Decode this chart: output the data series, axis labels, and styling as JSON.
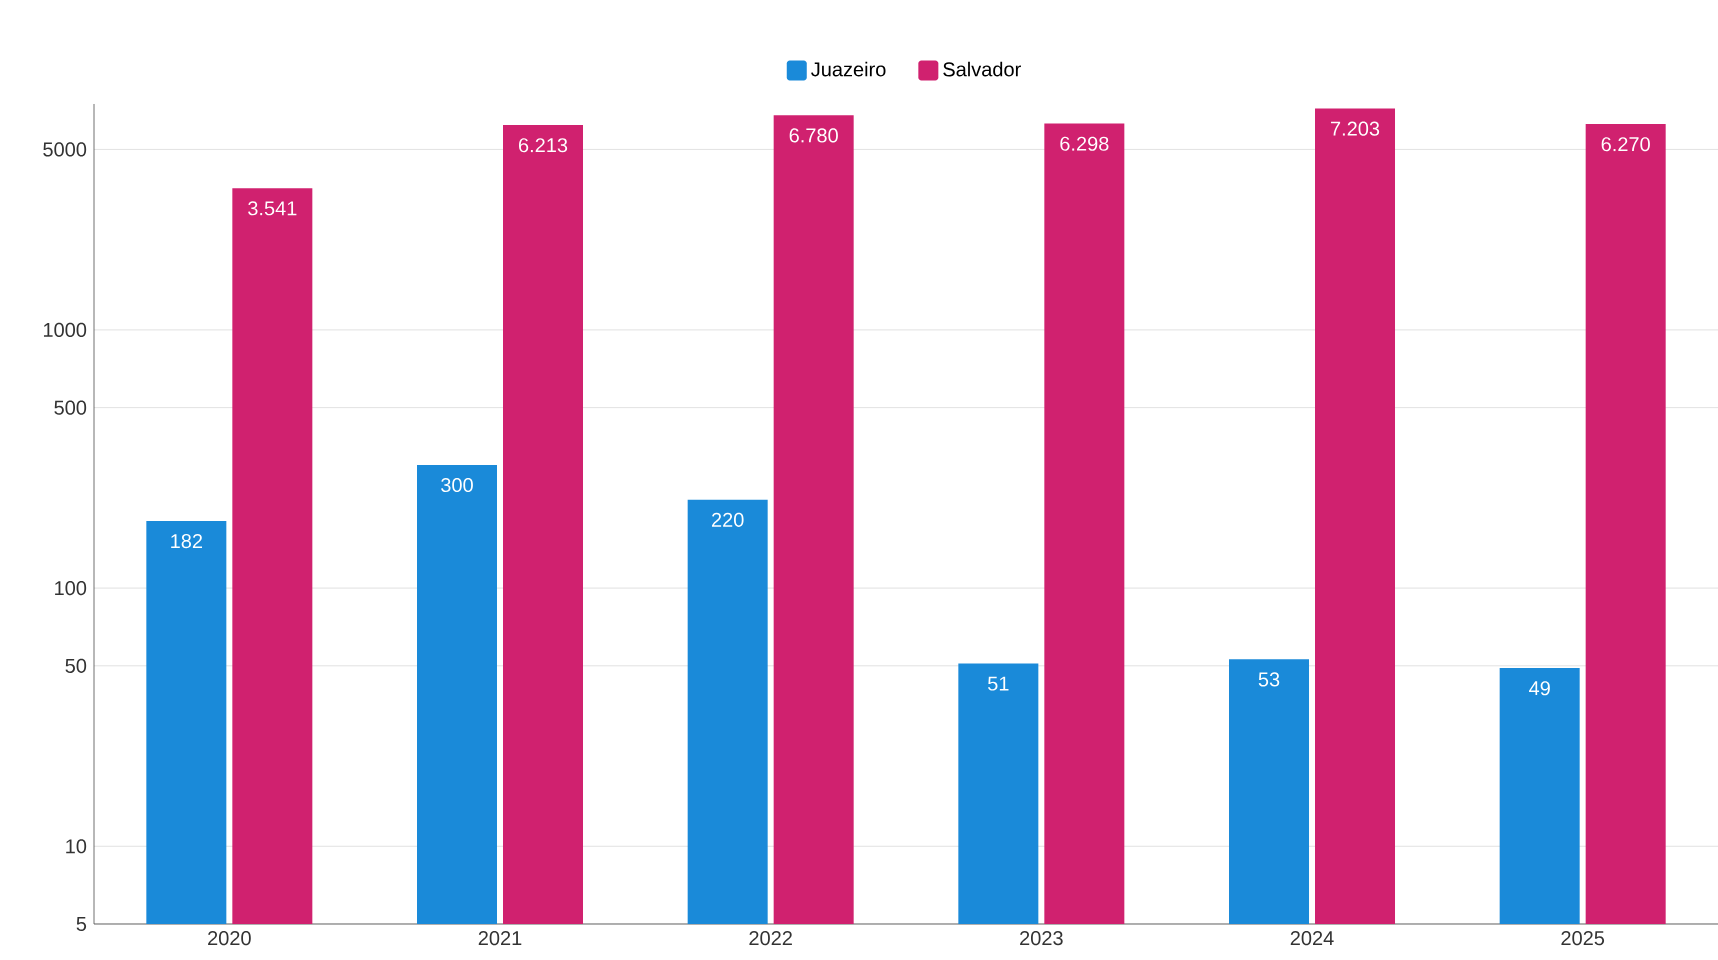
{
  "chart_data": {
    "type": "bar",
    "categories": [
      "2020",
      "2021",
      "2022",
      "2023",
      "2024",
      "2025"
    ],
    "series": [
      {
        "name": "Juazeiro",
        "color": "#1a8ad9",
        "values": [
          182,
          300,
          220,
          51,
          53,
          49
        ],
        "value_labels": [
          "182",
          "300",
          "220",
          "51",
          "53",
          "49"
        ]
      },
      {
        "name": "Salvador",
        "color": "#d0216f",
        "values": [
          3541,
          6213,
          6780,
          6298,
          7203,
          6270
        ],
        "value_labels": [
          "3.541",
          "6.213",
          "6.780",
          "6.298",
          "7.203",
          "6.270"
        ]
      }
    ],
    "log": "y",
    "ylim": [
      5,
      7500
    ],
    "yticks": [
      5,
      10,
      50,
      100,
      500,
      1000,
      5000
    ],
    "grid": "y",
    "legend": "top"
  }
}
